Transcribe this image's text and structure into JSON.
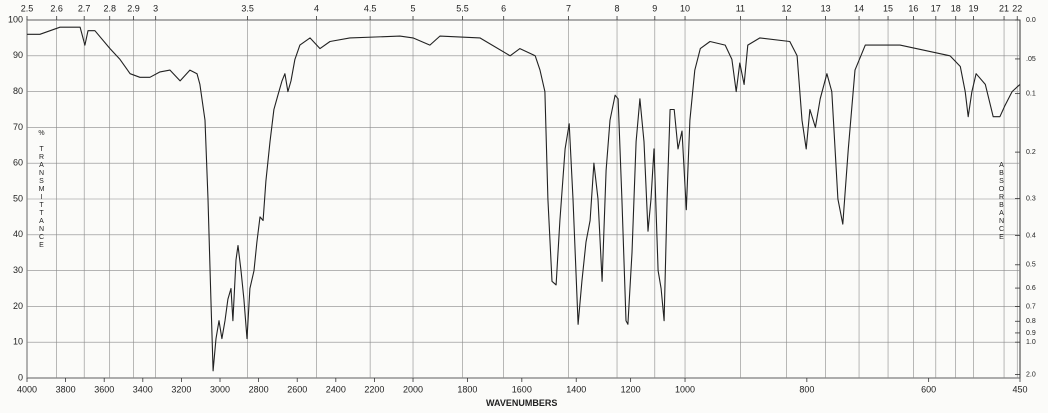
{
  "chart_data": {
    "type": "line",
    "x_label": "WAVENUMBERS",
    "y_label": "% TRANSMITTANCE",
    "y2_label": "ABSORBANCE",
    "xlim": [
      4000,
      450
    ],
    "xbreaks": [
      2000,
      1000
    ],
    "xticks": [
      4000,
      3800,
      3600,
      3400,
      3200,
      3000,
      2800,
      2600,
      2400,
      2200,
      2000,
      1800,
      1600,
      1400,
      1200,
      1000,
      800,
      600,
      450
    ],
    "x2scale": "wavelength",
    "x2ticks": [
      2.5,
      2.6,
      2.7,
      2.8,
      2.9,
      3,
      3.5,
      4,
      4.5,
      5,
      5.5,
      6,
      7,
      8,
      9,
      10,
      11,
      12,
      13,
      14,
      15,
      16,
      17,
      18,
      19,
      21,
      22
    ],
    "ylim": [
      0,
      100
    ],
    "yticks": [
      0,
      10,
      20,
      30,
      40,
      50,
      60,
      70,
      80,
      90,
      100
    ],
    "y2scale": "absorbance",
    "y2ticks": [
      {
        "value": 0,
        "label": "0.0"
      },
      {
        "value": 0.05,
        "label": ".05"
      },
      0.1,
      0.2,
      0.3,
      0.4,
      0.5,
      0.6,
      0.7,
      0.8,
      0.9,
      {
        "value": 1,
        "label": "1.0"
      },
      {
        "value": 2,
        "label": "2.0"
      }
    ],
    "grid": true,
    "color": "#222222",
    "x": [
      4000,
      3933,
      3829,
      3725,
      3700,
      3684,
      3648,
      3570,
      3518,
      3466,
      3415,
      3363,
      3311,
      3259,
      3207,
      3156,
      3119,
      3104,
      3078,
      3062,
      3047,
      3036,
      3021,
      3005,
      2990,
      2974,
      2959,
      2943,
      2933,
      2917,
      2907,
      2891,
      2876,
      2860,
      2845,
      2824,
      2809,
      2793,
      2777,
      2762,
      2741,
      2721,
      2700,
      2679,
      2664,
      2648,
      2632,
      2612,
      2586,
      2534,
      2482,
      2430,
      2327,
      2068,
      2000,
      1938,
      1901,
      1754,
      1643,
      1607,
      1551,
      1533,
      1515,
      1504,
      1489,
      1474,
      1460,
      1441,
      1426,
      1412,
      1393,
      1379,
      1364,
      1349,
      1335,
      1320,
      1305,
      1290,
      1276,
      1257,
      1246,
      1232,
      1217,
      1210,
      1195,
      1180,
      1166,
      1151,
      1136,
      1125,
      1114,
      1099,
      1088,
      1077,
      1066,
      1055,
      1040,
      1026,
      1011,
      998,
      992,
      984,
      975,
      959,
      934,
      923,
      916,
      910,
      903,
      897,
      877,
      828,
      816,
      808,
      801,
      795,
      786,
      778,
      767,
      759,
      749,
      741,
      732,
      721,
      704,
      647,
      565,
      548,
      540,
      535,
      529,
      522,
      507,
      494,
      483,
      475,
      463,
      450
    ],
    "values": [
      96,
      96,
      98,
      98,
      93,
      97,
      97,
      92,
      89,
      85,
      84,
      84,
      85.5,
      86,
      83,
      86,
      85,
      82,
      72,
      50,
      22,
      2,
      11,
      16,
      11,
      16,
      22,
      25,
      16,
      33,
      37,
      30,
      22,
      11,
      25,
      30,
      38,
      45,
      44,
      55,
      66,
      75,
      79,
      83,
      85,
      80,
      83,
      89,
      93,
      95,
      92,
      94,
      95,
      95.5,
      95,
      93,
      95.5,
      95,
      90,
      92,
      90,
      86,
      80,
      50,
      27,
      26,
      44,
      64,
      71,
      50,
      15,
      27,
      38,
      44,
      60,
      50,
      27,
      58,
      72,
      79,
      78,
      50,
      16,
      15,
      35,
      66,
      78,
      66,
      41,
      50,
      64,
      30,
      25,
      16,
      50,
      75,
      75,
      64,
      69,
      47,
      72,
      86,
      92,
      94,
      93,
      89,
      80,
      88,
      82,
      93,
      95,
      94,
      90,
      72,
      64,
      75,
      70,
      78,
      85,
      80,
      50,
      43,
      64,
      86,
      93,
      93,
      90,
      87,
      80,
      73,
      80,
      85,
      82,
      73,
      73,
      76,
      80,
      82
    ]
  }
}
